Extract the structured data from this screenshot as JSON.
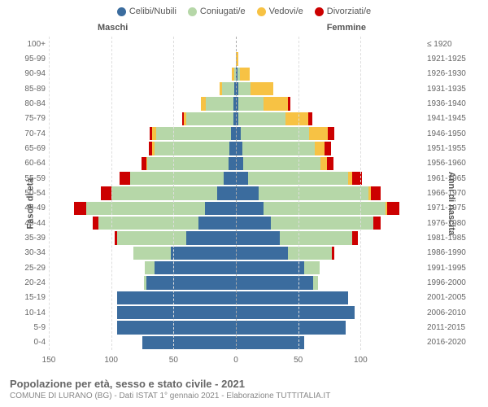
{
  "chart": {
    "type": "population-pyramid",
    "legend": [
      {
        "label": "Celibi/Nubili",
        "color": "#3b6c9e"
      },
      {
        "label": "Coniugati/e",
        "color": "#b6d7a8"
      },
      {
        "label": "Vedovi/e",
        "color": "#f7c244"
      },
      {
        "label": "Divorziati/e",
        "color": "#cc0000"
      }
    ],
    "male_label": "Maschi",
    "female_label": "Femmine",
    "y_axis_left_title": "Fasce di età",
    "y_axis_right_title": "Anni di nascita",
    "x_max": 150,
    "x_ticks": [
      150,
      100,
      50,
      0,
      50,
      100
    ],
    "footer_title": "Popolazione per età, sesso e stato civile - 2021",
    "footer_sub": "COMUNE DI LURANO (BG) - Dati ISTAT 1° gennaio 2021 - Elaborazione TUTTITALIA.IT",
    "background_color": "#ffffff",
    "grid_color": "#dddddd",
    "center_line_color": "#aaaaaa",
    "label_fontsize": 10,
    "rows": [
      {
        "age": "100+",
        "birth": "≤ 1920",
        "m": [
          0,
          0,
          0,
          0
        ],
        "f": [
          0,
          0,
          0,
          0
        ]
      },
      {
        "age": "95-99",
        "birth": "1921-1925",
        "m": [
          0,
          0,
          0,
          0
        ],
        "f": [
          0,
          0,
          2,
          0
        ]
      },
      {
        "age": "90-94",
        "birth": "1926-1930",
        "m": [
          0,
          1,
          2,
          0
        ],
        "f": [
          1,
          2,
          8,
          0
        ]
      },
      {
        "age": "85-89",
        "birth": "1931-1935",
        "m": [
          1,
          10,
          2,
          0
        ],
        "f": [
          2,
          10,
          18,
          0
        ]
      },
      {
        "age": "80-84",
        "birth": "1936-1940",
        "m": [
          2,
          22,
          4,
          0
        ],
        "f": [
          2,
          20,
          20,
          2
        ]
      },
      {
        "age": "75-79",
        "birth": "1941-1945",
        "m": [
          2,
          38,
          2,
          1
        ],
        "f": [
          2,
          38,
          18,
          3
        ]
      },
      {
        "age": "70-74",
        "birth": "1946-1950",
        "m": [
          4,
          60,
          3,
          2
        ],
        "f": [
          4,
          55,
          15,
          5
        ]
      },
      {
        "age": "65-69",
        "birth": "1951-1955",
        "m": [
          5,
          60,
          2,
          3
        ],
        "f": [
          5,
          58,
          8,
          5
        ]
      },
      {
        "age": "60-64",
        "birth": "1956-1960",
        "m": [
          6,
          65,
          1,
          4
        ],
        "f": [
          6,
          62,
          5,
          5
        ]
      },
      {
        "age": "55-59",
        "birth": "1961-1965",
        "m": [
          10,
          75,
          0,
          8
        ],
        "f": [
          10,
          80,
          3,
          8
        ]
      },
      {
        "age": "50-54",
        "birth": "1966-1970",
        "m": [
          15,
          85,
          0,
          8
        ],
        "f": [
          18,
          88,
          2,
          8
        ]
      },
      {
        "age": "45-49",
        "birth": "1971-1975",
        "m": [
          25,
          95,
          0,
          10
        ],
        "f": [
          22,
          98,
          1,
          10
        ]
      },
      {
        "age": "40-44",
        "birth": "1976-1980",
        "m": [
          30,
          80,
          0,
          5
        ],
        "f": [
          28,
          82,
          0,
          6
        ]
      },
      {
        "age": "35-39",
        "birth": "1981-1985",
        "m": [
          40,
          55,
          0,
          2
        ],
        "f": [
          35,
          58,
          0,
          5
        ]
      },
      {
        "age": "30-34",
        "birth": "1986-1990",
        "m": [
          52,
          30,
          0,
          0
        ],
        "f": [
          42,
          35,
          0,
          2
        ]
      },
      {
        "age": "25-29",
        "birth": "1991-1995",
        "m": [
          65,
          8,
          0,
          0
        ],
        "f": [
          55,
          12,
          0,
          0
        ]
      },
      {
        "age": "20-24",
        "birth": "1996-2000",
        "m": [
          72,
          2,
          0,
          0
        ],
        "f": [
          62,
          4,
          0,
          0
        ]
      },
      {
        "age": "15-19",
        "birth": "2001-2005",
        "m": [
          95,
          0,
          0,
          0
        ],
        "f": [
          90,
          0,
          0,
          0
        ]
      },
      {
        "age": "10-14",
        "birth": "2006-2010",
        "m": [
          95,
          0,
          0,
          0
        ],
        "f": [
          95,
          0,
          0,
          0
        ]
      },
      {
        "age": "5-9",
        "birth": "2011-2015",
        "m": [
          95,
          0,
          0,
          0
        ],
        "f": [
          88,
          0,
          0,
          0
        ]
      },
      {
        "age": "0-4",
        "birth": "2016-2020",
        "m": [
          75,
          0,
          0,
          0
        ],
        "f": [
          55,
          0,
          0,
          0
        ]
      }
    ]
  }
}
